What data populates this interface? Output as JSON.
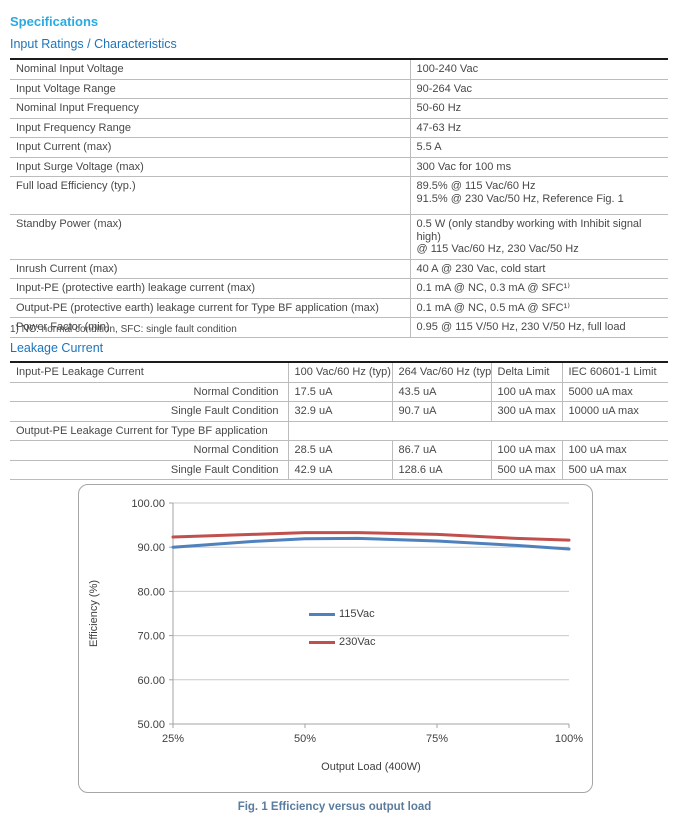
{
  "page": {
    "title": "Specifications",
    "section1": "Input Ratings / Characteristics",
    "section2": "Leakage Current",
    "footnote": "1) NC: normal condition, SFC: single fault condition",
    "figure_caption": "Fig. 1 Efficiency versus output load"
  },
  "colors": {
    "title_accent": "#29abe2",
    "section_accent": "#1c75bc",
    "caption_color": "#5a7c9e",
    "grid": "#c9c9c9",
    "axis": "#a3a3a3",
    "tick_text": "#3f3f41"
  },
  "input_ratings_table": {
    "rows": [
      {
        "label": "Nominal Input Voltage",
        "value": "100-240 Vac"
      },
      {
        "label": "Input Voltage Range",
        "value": "90-264 Vac"
      },
      {
        "label": "Nominal Input Frequency",
        "value": "50-60 Hz"
      },
      {
        "label": "Input Frequency Range",
        "value": "47-63 Hz"
      },
      {
        "label": "Input Current (max)",
        "value": "5.5 A"
      },
      {
        "label": "Input Surge Voltage (max)",
        "value": "300 Vac for 100 ms"
      },
      {
        "label": "Full load Efficiency (typ.)",
        "value": "89.5% @ 115 Vac/60 Hz\n91.5% @ 230 Vac/50 Hz, Reference Fig. 1"
      },
      {
        "label": "Standby Power (max)",
        "value": "0.5 W (only standby working with Inhibit signal high)\n@ 115 Vac/60 Hz, 230 Vac/50 Hz"
      },
      {
        "label": "Inrush Current (max)",
        "value": "40 A @ 230 Vac, cold start"
      },
      {
        "label": "Input-PE (protective earth) leakage current (max)",
        "value": "0.1 mA @ NC, 0.3 mA @ SFC¹⁾"
      },
      {
        "label": "Output-PE (protective earth) leakage current for Type BF application (max)",
        "value": "0.1 mA @ NC, 0.5 mA @ SFC¹⁾"
      },
      {
        "label": "Power Factor (min)",
        "value": "0.95 @ 115 V/50 Hz, 230 V/50 Hz, full load"
      }
    ]
  },
  "leakage_table": {
    "header": [
      "Input-PE Leakage Current",
      "100 Vac/60 Hz (typ)",
      "264 Vac/60 Hz (typ)",
      "Delta Limit",
      "IEC 60601-1 Limit"
    ],
    "section_row_label": "Output-PE Leakage Current for Type BF application",
    "rows_input_pe": [
      [
        "Normal Condition",
        "17.5 uA",
        "43.5 uA",
        "100 uA max",
        "5000 uA max"
      ],
      [
        "Single Fault Condition",
        "32.9 uA",
        "90.7 uA",
        "300 uA max",
        "10000 uA max"
      ]
    ],
    "rows_output_pe": [
      [
        "Normal Condition",
        "28.5 uA",
        "86.7 uA",
        "100 uA max",
        "100 uA max"
      ],
      [
        "Single Fault Condition",
        "42.9 uA",
        "128.6 uA",
        "500 uA max",
        "500 uA max"
      ]
    ]
  },
  "chart_data": {
    "type": "line",
    "title": "",
    "xlabel": "Output Load (400W)",
    "ylabel": "Efficiency (%)",
    "ylim": [
      50,
      100
    ],
    "y_ticks": [
      100,
      90,
      80,
      70,
      60,
      50
    ],
    "y_tick_labels": [
      "100.00",
      "90.00",
      "80.00",
      "70.00",
      "60.00",
      "50.00"
    ],
    "x_tick_labels": [
      "25%",
      "50%",
      "75%",
      "100%"
    ],
    "x_tick_values": [
      25,
      50,
      75,
      100
    ],
    "xlim": [
      25,
      100
    ],
    "grid": true,
    "legend_position": "center",
    "x": [
      25,
      40,
      50,
      60,
      75,
      90,
      100
    ],
    "series": [
      {
        "name": "115Vac",
        "color": "#4f81bd",
        "values": [
          90.0,
          91.3,
          91.9,
          92.0,
          91.4,
          90.4,
          89.6
        ]
      },
      {
        "name": "230Vac",
        "color": "#c0504d",
        "values": [
          92.3,
          92.9,
          93.3,
          93.3,
          92.9,
          92.0,
          91.6
        ]
      }
    ]
  }
}
